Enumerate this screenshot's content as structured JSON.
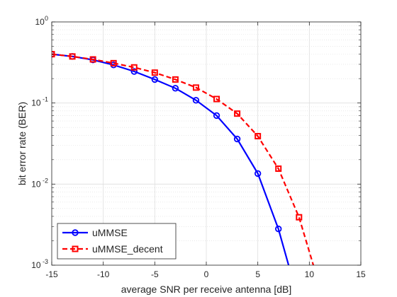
{
  "chart_data": {
    "type": "line",
    "xlabel": "average SNR per receive antenna [dB]",
    "ylabel": "bit error rate (BER)",
    "xlim": [
      -15,
      15
    ],
    "ylim": [
      0.001,
      1
    ],
    "yscale": "log",
    "grid": true,
    "minor_grid": true,
    "legend_position": "bottom-left",
    "x_ticks": [
      -15,
      -10,
      -5,
      0,
      5,
      10,
      15
    ],
    "y_ticks": [
      {
        "value": 1,
        "base": "10",
        "exp": "0"
      },
      {
        "value": 0.1,
        "base": "10",
        "exp": "-1"
      },
      {
        "value": 0.01,
        "base": "10",
        "exp": "-2"
      },
      {
        "value": 0.001,
        "base": "10",
        "exp": "-3"
      }
    ],
    "series": [
      {
        "name": "uMMSE",
        "color": "#0000ff",
        "line_style": "solid",
        "marker": "circle",
        "x": [
          -15,
          -13,
          -11,
          -9,
          -7,
          -5,
          -3,
          -1,
          1,
          3,
          5,
          7,
          9
        ],
        "y": [
          0.4,
          0.375,
          0.34,
          0.295,
          0.245,
          0.195,
          0.152,
          0.108,
          0.07,
          0.036,
          0.0135,
          0.0028,
          0.00035
        ]
      },
      {
        "name": "uMMSE_decent",
        "color": "#ff0000",
        "line_style": "dashed",
        "marker": "square",
        "x": [
          -15,
          -13,
          -11,
          -9,
          -7,
          -5,
          -3,
          -1,
          1,
          3,
          5,
          7,
          9,
          11
        ],
        "y": [
          0.4,
          0.375,
          0.345,
          0.31,
          0.275,
          0.237,
          0.195,
          0.155,
          0.112,
          0.074,
          0.039,
          0.0155,
          0.0039,
          0.00055
        ]
      }
    ]
  }
}
